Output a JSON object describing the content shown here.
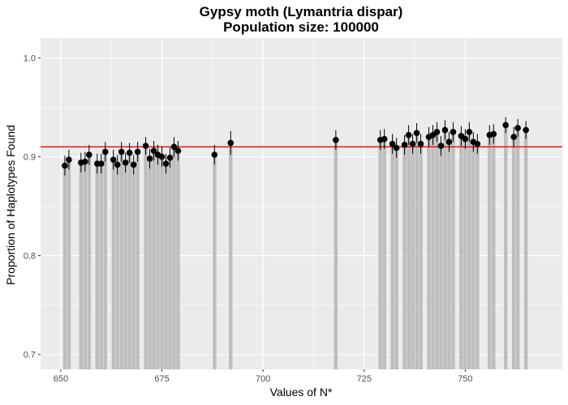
{
  "chart_data": {
    "type": "scatter",
    "title": "Gypsy moth (Lymantria dispar)",
    "subtitle": "Population size: 100000",
    "xlabel": "Values of N*",
    "ylabel": "Proportion of Haplotypes Found",
    "xlim": [
      645,
      774
    ],
    "ylim": [
      0.685,
      1.02
    ],
    "x_ticks": [
      650,
      675,
      700,
      725,
      750
    ],
    "y_ticks": [
      0.7,
      0.8,
      0.9,
      1.0
    ],
    "x_tick_labels": [
      "650",
      "675",
      "700",
      "725",
      "750"
    ],
    "y_tick_labels": [
      "0.7",
      "0.8",
      "0.9",
      "1.0"
    ],
    "grid": true,
    "reference_line": {
      "y": 0.91,
      "color": "#ff0000"
    },
    "colors": {
      "panel": "#ebebeb",
      "grid": "#ffffff",
      "bars": "#bebebe",
      "points": "#000000"
    },
    "series": [
      {
        "x": [
          651,
          652,
          655,
          656,
          657,
          659,
          660,
          661,
          663,
          664,
          665,
          666,
          667,
          668,
          669,
          671,
          672,
          673,
          674,
          675,
          676,
          677,
          678,
          679,
          688,
          692,
          718,
          729,
          730,
          732,
          733,
          735,
          736,
          737,
          738,
          739,
          741,
          742,
          743,
          744,
          745,
          746,
          747,
          749,
          750,
          751,
          752,
          753,
          756,
          757,
          760,
          762,
          763,
          765
        ],
        "y": [
          0.891,
          0.897,
          0.894,
          0.895,
          0.902,
          0.893,
          0.893,
          0.905,
          0.897,
          0.892,
          0.905,
          0.894,
          0.904,
          0.892,
          0.905,
          0.911,
          0.898,
          0.906,
          0.902,
          0.9,
          0.893,
          0.899,
          0.91,
          0.906,
          0.902,
          0.914,
          0.917,
          0.917,
          0.918,
          0.913,
          0.909,
          0.912,
          0.922,
          0.913,
          0.924,
          0.913,
          0.92,
          0.922,
          0.925,
          0.911,
          0.927,
          0.915,
          0.925,
          0.921,
          0.918,
          0.925,
          0.915,
          0.913,
          0.922,
          0.923,
          0.932,
          0.92,
          0.929,
          0.927
        ],
        "err": [
          0.01,
          0.01,
          0.01,
          0.01,
          0.01,
          0.01,
          0.01,
          0.01,
          0.01,
          0.01,
          0.01,
          0.01,
          0.01,
          0.01,
          0.01,
          0.009,
          0.01,
          0.01,
          0.01,
          0.01,
          0.01,
          0.01,
          0.01,
          0.01,
          0.01,
          0.012,
          0.01,
          0.01,
          0.01,
          0.01,
          0.01,
          0.01,
          0.01,
          0.01,
          0.01,
          0.01,
          0.01,
          0.01,
          0.01,
          0.01,
          0.01,
          0.01,
          0.01,
          0.01,
          0.01,
          0.01,
          0.01,
          0.01,
          0.01,
          0.01,
          0.008,
          0.01,
          0.009,
          0.009
        ]
      }
    ]
  }
}
